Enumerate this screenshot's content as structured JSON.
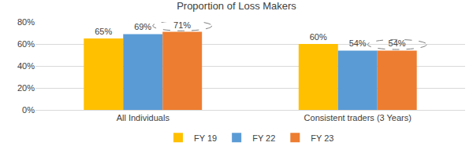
{
  "chart_data": {
    "type": "bar",
    "title": "Proportion of Loss Makers",
    "categories": [
      "All Individuals",
      "Consistent traders (3 Years)"
    ],
    "series": [
      {
        "name": "FY 19",
        "color": "#FFC000",
        "values": [
          65,
          60
        ],
        "value_labels": [
          "65%",
          "60%"
        ]
      },
      {
        "name": "FY 22",
        "color": "#5B9BD5",
        "values": [
          69,
          54
        ],
        "value_labels": [
          "69%",
          "54%"
        ]
      },
      {
        "name": "FY 23",
        "color": "#ED7D31",
        "values": [
          71,
          54
        ],
        "value_labels": [
          "71%",
          "54%"
        ]
      }
    ],
    "ylim": [
      0,
      80
    ],
    "yticks": [
      {
        "value": 0,
        "label": "0%"
      },
      {
        "value": 20,
        "label": "20%"
      },
      {
        "value": 40,
        "label": "40%"
      },
      {
        "value": 60,
        "label": "60%"
      },
      {
        "value": 80,
        "label": "80%"
      }
    ],
    "grid": true,
    "legend": "bottom",
    "data_labels": true
  }
}
